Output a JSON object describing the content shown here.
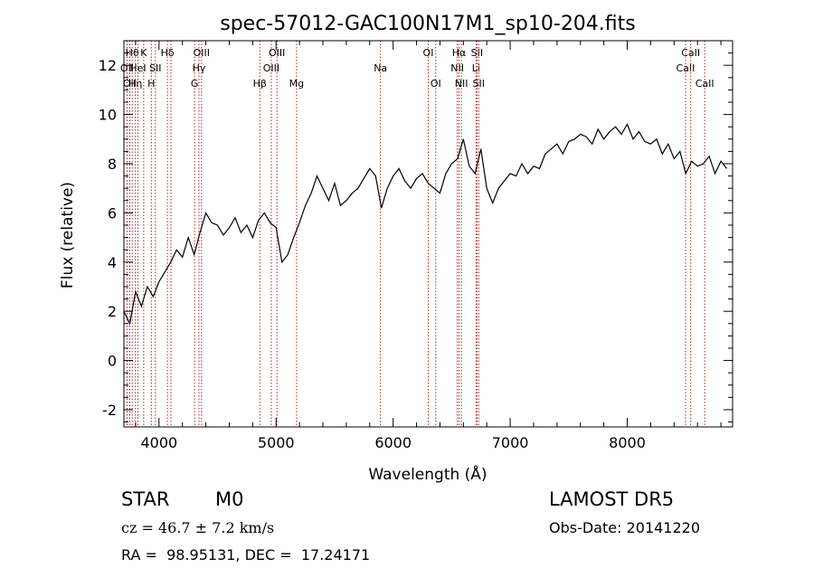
{
  "chart_data": {
    "type": "line",
    "title": "spec-57012-GAC100N17M1_sp10-204.fits",
    "xlabel": "Wavelength (Å)",
    "ylabel": "Flux (relative)",
    "xlim": [
      3700,
      8900
    ],
    "ylim": [
      -2.7,
      13
    ],
    "x_ticks": [
      4000,
      5000,
      6000,
      7000,
      8000
    ],
    "x_tick_labels": [
      "4000",
      "5000",
      "6000",
      "7000",
      "8000"
    ],
    "y_ticks": [
      -2,
      0,
      2,
      4,
      6,
      8,
      10,
      12
    ],
    "y_tick_labels": [
      "-2",
      "0",
      "2",
      "4",
      "6",
      "8",
      "10",
      "12"
    ],
    "grid": false,
    "series": [
      {
        "x": [
          3700,
          3750,
          3800,
          3850,
          3900,
          3950,
          4000,
          4050,
          4100,
          4150,
          4200,
          4250,
          4300,
          4350,
          4400,
          4450,
          4500,
          4550,
          4600,
          4650,
          4700,
          4750,
          4800,
          4850,
          4900,
          4950,
          5000,
          5050,
          5100,
          5150,
          5200,
          5250,
          5300,
          5350,
          5400,
          5450,
          5500,
          5550,
          5600,
          5650,
          5700,
          5750,
          5800,
          5850,
          5900,
          5950,
          6000,
          6050,
          6100,
          6150,
          6200,
          6250,
          6300,
          6350,
          6400,
          6450,
          6500,
          6550,
          6600,
          6650,
          6700,
          6750,
          6800,
          6850,
          6900,
          6950,
          7000,
          7050,
          7100,
          7150,
          7200,
          7250,
          7300,
          7350,
          7400,
          7450,
          7500,
          7550,
          7600,
          7650,
          7700,
          7750,
          7800,
          7850,
          7900,
          7950,
          8000,
          8050,
          8100,
          8150,
          8200,
          8250,
          8300,
          8350,
          8400,
          8450,
          8500,
          8550,
          8600,
          8650,
          8700,
          8750,
          8800,
          8850
        ],
        "values": [
          2.0,
          1.5,
          2.8,
          2.2,
          3.0,
          2.6,
          3.2,
          3.6,
          4.0,
          4.5,
          4.2,
          5.0,
          4.3,
          5.2,
          6.0,
          5.6,
          5.5,
          5.1,
          5.4,
          5.8,
          5.2,
          5.5,
          5.0,
          5.7,
          6.0,
          5.6,
          5.4,
          4.0,
          4.3,
          5.0,
          5.6,
          6.3,
          6.8,
          7.5,
          7.0,
          6.5,
          7.2,
          6.3,
          6.5,
          6.8,
          7.0,
          7.4,
          7.8,
          7.5,
          6.2,
          7.0,
          7.5,
          7.8,
          7.3,
          7.0,
          7.4,
          7.6,
          7.2,
          7.0,
          6.8,
          7.6,
          8.0,
          8.2,
          9.0,
          7.9,
          7.6,
          8.6,
          7.0,
          6.4,
          7.0,
          7.3,
          7.6,
          7.5,
          8.0,
          7.6,
          7.9,
          7.8,
          8.4,
          8.6,
          8.8,
          8.4,
          8.9,
          9.0,
          9.2,
          9.1,
          8.8,
          9.4,
          9.0,
          9.3,
          9.5,
          9.2,
          9.6,
          9.0,
          9.3,
          8.9,
          8.8,
          9.0,
          8.4,
          8.8,
          8.2,
          8.5,
          7.6,
          8.1,
          7.9,
          8.0,
          8.3,
          7.6,
          8.1,
          7.8
        ]
      }
    ],
    "line_markers": [
      {
        "x": 3727,
        "labels": [
          "OII"
        ],
        "row": 1
      },
      {
        "x": 3750,
        "labels": [
          "OII"
        ],
        "row": 2
      },
      {
        "x": 3771,
        "labels": [
          "Hθ"
        ],
        "row": 0
      },
      {
        "x": 3798,
        "labels": [
          "Hη"
        ],
        "row": 2
      },
      {
        "x": 3820,
        "labels": [
          "HeI"
        ],
        "row": 1
      },
      {
        "x": 3869,
        "labels": [
          "K"
        ],
        "row": 0
      },
      {
        "x": 3934,
        "labels": [
          "H"
        ],
        "row": 2
      },
      {
        "x": 3969,
        "labels": [
          "SII"
        ],
        "row": 1
      },
      {
        "x": 4072,
        "labels": [
          "Hδ"
        ],
        "row": 0
      },
      {
        "x": 4102,
        "labels": [],
        "row": 0
      },
      {
        "x": 4304,
        "labels": [
          "G"
        ],
        "row": 2
      },
      {
        "x": 4341,
        "labels": [
          "Hγ"
        ],
        "row": 1
      },
      {
        "x": 4363,
        "labels": [
          "OIII"
        ],
        "row": 0
      },
      {
        "x": 4861,
        "labels": [
          "Hβ"
        ],
        "row": 2
      },
      {
        "x": 4959,
        "labels": [
          "OIII"
        ],
        "row": 1
      },
      {
        "x": 5007,
        "labels": [
          "OIII"
        ],
        "row": 0
      },
      {
        "x": 5175,
        "labels": [
          "Mg"
        ],
        "row": 2
      },
      {
        "x": 5892,
        "labels": [
          "Na"
        ],
        "row": 1
      },
      {
        "x": 6300,
        "labels": [
          "OI"
        ],
        "row": 0
      },
      {
        "x": 6364,
        "labels": [
          "OI"
        ],
        "row": 2
      },
      {
        "x": 6548,
        "labels": [
          "NII"
        ],
        "row": 1
      },
      {
        "x": 6563,
        "labels": [
          "Hα"
        ],
        "row": 0
      },
      {
        "x": 6583,
        "labels": [
          "NII"
        ],
        "row": 2
      },
      {
        "x": 6708,
        "labels": [
          "Li"
        ],
        "row": 1
      },
      {
        "x": 6716,
        "labels": [
          "SII"
        ],
        "row": 0
      },
      {
        "x": 6731,
        "labels": [
          "SII"
        ],
        "row": 2
      },
      {
        "x": 8498,
        "labels": [
          "CaII"
        ],
        "row": 1
      },
      {
        "x": 8542,
        "labels": [
          "CaII"
        ],
        "row": 0
      },
      {
        "x": 8662,
        "labels": [
          "CaII"
        ],
        "row": 2
      }
    ],
    "marker_color": "#b22222",
    "line_color": "#000000"
  },
  "info": {
    "object_class": "STAR",
    "subclass": "M0",
    "survey": "LAMOST DR5",
    "cz": "cz = 46.7 ± 7.2 km/s",
    "obs_date": "Obs-Date: 20141220",
    "coords": "RA =  98.95131, DEC =  17.24171"
  }
}
